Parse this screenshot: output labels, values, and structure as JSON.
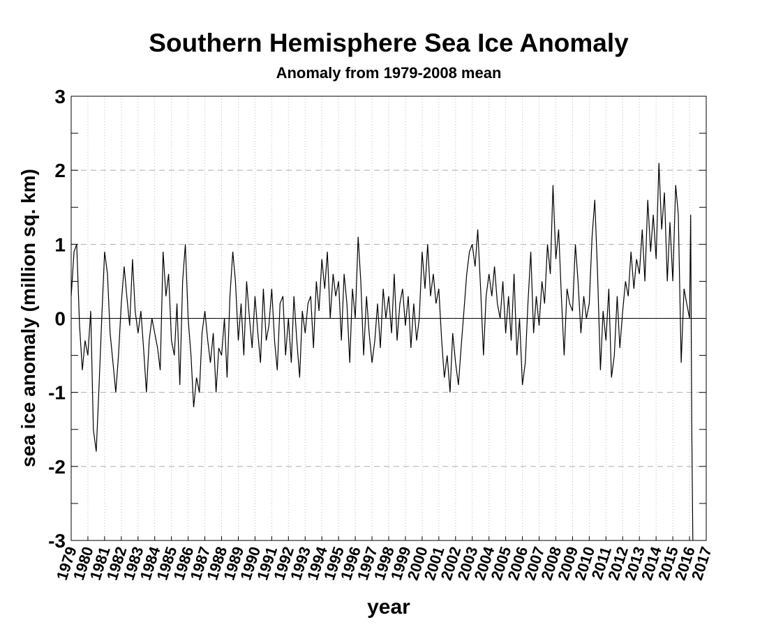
{
  "chart_data": {
    "type": "line",
    "title": "Southern Hemisphere Sea Ice Anomaly",
    "subtitle": "Anomaly from 1979-2008 mean",
    "xlabel": "year",
    "ylabel": "sea ice anomaly (million sq. km)",
    "color": "#000000",
    "grid": true,
    "xlim": [
      1979,
      2017
    ],
    "ylim": [
      -3,
      3
    ],
    "yticks": [
      -3,
      -2,
      -1,
      0,
      1,
      2,
      3
    ],
    "xticks": [
      1979,
      1980,
      1981,
      1982,
      1983,
      1984,
      1985,
      1986,
      1987,
      1988,
      1989,
      1990,
      1991,
      1992,
      1993,
      1994,
      1995,
      1996,
      1997,
      1998,
      1999,
      2000,
      2001,
      2002,
      2003,
      2004,
      2005,
      2006,
      2007,
      2008,
      2009,
      2010,
      2011,
      2012,
      2013,
      2014,
      2015,
      2016,
      2017
    ],
    "x": [
      1979,
      1979.17,
      1979.33,
      1979.5,
      1979.67,
      1979.83,
      1980,
      1980.17,
      1980.33,
      1980.5,
      1980.67,
      1980.83,
      1981,
      1981.17,
      1981.33,
      1981.5,
      1981.67,
      1981.83,
      1982,
      1982.17,
      1982.33,
      1982.5,
      1982.67,
      1982.83,
      1983,
      1983.17,
      1983.33,
      1983.5,
      1983.67,
      1983.83,
      1984,
      1984.17,
      1984.33,
      1984.5,
      1984.67,
      1984.83,
      1985,
      1985.17,
      1985.33,
      1985.5,
      1985.67,
      1985.83,
      1986,
      1986.17,
      1986.33,
      1986.5,
      1986.67,
      1986.83,
      1987,
      1987.17,
      1987.33,
      1987.5,
      1987.67,
      1987.83,
      1988,
      1988.17,
      1988.33,
      1988.5,
      1988.67,
      1988.83,
      1989,
      1989.17,
      1989.33,
      1989.5,
      1989.67,
      1989.83,
      1990,
      1990.17,
      1990.33,
      1990.5,
      1990.67,
      1990.83,
      1991,
      1991.17,
      1991.33,
      1991.5,
      1991.67,
      1991.83,
      1992,
      1992.17,
      1992.33,
      1992.5,
      1992.67,
      1992.83,
      1993,
      1993.17,
      1993.33,
      1993.5,
      1993.67,
      1993.83,
      1994,
      1994.17,
      1994.33,
      1994.5,
      1994.67,
      1994.83,
      1995,
      1995.17,
      1995.33,
      1995.5,
      1995.67,
      1995.83,
      1996,
      1996.17,
      1996.33,
      1996.5,
      1996.67,
      1996.83,
      1997,
      1997.17,
      1997.33,
      1997.5,
      1997.67,
      1997.83,
      1998,
      1998.17,
      1998.33,
      1998.5,
      1998.67,
      1998.83,
      1999,
      1999.17,
      1999.33,
      1999.5,
      1999.67,
      1999.83,
      2000,
      2000.17,
      2000.33,
      2000.5,
      2000.67,
      2000.83,
      2001,
      2001.17,
      2001.33,
      2001.5,
      2001.67,
      2001.83,
      2002,
      2002.17,
      2002.33,
      2002.5,
      2002.67,
      2002.83,
      2003,
      2003.17,
      2003.33,
      2003.5,
      2003.67,
      2003.83,
      2004,
      2004.17,
      2004.33,
      2004.5,
      2004.67,
      2004.83,
      2005,
      2005.17,
      2005.33,
      2005.5,
      2005.67,
      2005.83,
      2006,
      2006.17,
      2006.33,
      2006.5,
      2006.67,
      2006.83,
      2007,
      2007.17,
      2007.33,
      2007.5,
      2007.67,
      2007.83,
      2008,
      2008.17,
      2008.33,
      2008.5,
      2008.67,
      2008.83,
      2009,
      2009.17,
      2009.33,
      2009.5,
      2009.67,
      2009.83,
      2010,
      2010.17,
      2010.33,
      2010.5,
      2010.67,
      2010.83,
      2011,
      2011.17,
      2011.33,
      2011.5,
      2011.67,
      2011.83,
      2012,
      2012.17,
      2012.33,
      2012.5,
      2012.67,
      2012.83,
      2013,
      2013.17,
      2013.33,
      2013.5,
      2013.67,
      2013.83,
      2014,
      2014.17,
      2014.33,
      2014.5,
      2014.67,
      2014.83,
      2015,
      2015.17,
      2015.33,
      2015.5,
      2015.67,
      2015.83,
      2016,
      2016.07,
      2016.13,
      2016.2
    ],
    "values": [
      0.3,
      0.9,
      1.0,
      -0.1,
      -0.7,
      -0.3,
      -0.5,
      0.1,
      -1.5,
      -1.8,
      -0.9,
      0.0,
      0.9,
      0.6,
      -0.2,
      -0.6,
      -1.0,
      -0.5,
      0.2,
      0.7,
      0.3,
      -0.1,
      0.8,
      0.1,
      -0.2,
      0.1,
      -0.4,
      -1.0,
      -0.3,
      0.0,
      -0.2,
      -0.4,
      -0.7,
      0.9,
      0.3,
      0.6,
      -0.3,
      -0.5,
      0.2,
      -0.9,
      0.5,
      1.0,
      0.0,
      -0.5,
      -1.2,
      -0.8,
      -1.0,
      -0.2,
      0.1,
      -0.3,
      -0.6,
      -0.2,
      -1.0,
      -0.4,
      -0.5,
      0.0,
      -0.8,
      0.3,
      0.9,
      0.5,
      -0.3,
      0.2,
      -0.5,
      0.5,
      0.0,
      -0.4,
      0.3,
      -0.2,
      -0.6,
      0.4,
      -0.3,
      -0.1,
      0.4,
      -0.3,
      -0.7,
      0.2,
      0.3,
      -0.5,
      0.0,
      -0.6,
      0.3,
      -0.3,
      -0.8,
      0.1,
      -0.2,
      0.2,
      0.3,
      -0.4,
      0.5,
      0.1,
      0.8,
      0.4,
      0.9,
      0.0,
      0.6,
      0.3,
      0.5,
      -0.3,
      0.6,
      0.2,
      -0.6,
      0.4,
      0.0,
      1.1,
      0.5,
      -0.5,
      0.3,
      -0.2,
      -0.6,
      -0.3,
      0.2,
      -0.4,
      0.4,
      0.0,
      0.3,
      -0.2,
      0.6,
      -0.3,
      0.2,
      0.4,
      -0.1,
      0.3,
      -0.4,
      0.2,
      -0.3,
      0.0,
      0.9,
      0.4,
      1.0,
      0.3,
      0.6,
      0.2,
      0.4,
      -0.3,
      -0.8,
      -0.5,
      -1.0,
      -0.2,
      -0.6,
      -0.9,
      -0.4,
      0.1,
      0.6,
      0.9,
      1.0,
      0.7,
      1.2,
      0.4,
      -0.5,
      0.3,
      0.6,
      0.3,
      0.7,
      0.2,
      0.0,
      0.5,
      -0.2,
      0.3,
      -0.3,
      0.6,
      -0.5,
      0.0,
      -0.9,
      -0.6,
      0.2,
      0.9,
      -0.2,
      0.3,
      -0.1,
      0.5,
      0.2,
      1.0,
      0.6,
      1.8,
      0.8,
      1.2,
      0.3,
      -0.5,
      0.4,
      0.2,
      0.1,
      1.0,
      0.5,
      -0.2,
      0.3,
      0.0,
      0.2,
      1.1,
      1.6,
      0.6,
      -0.7,
      0.1,
      -0.3,
      0.4,
      -0.8,
      -0.5,
      0.3,
      -0.4,
      0.1,
      0.5,
      0.3,
      0.9,
      0.4,
      0.8,
      0.6,
      1.2,
      0.5,
      1.6,
      0.9,
      1.4,
      0.8,
      2.1,
      1.2,
      1.7,
      0.5,
      1.3,
      0.5,
      1.8,
      1.4,
      -0.6,
      0.4,
      0.2,
      0.0,
      1.4,
      -1.4,
      -3
    ]
  }
}
